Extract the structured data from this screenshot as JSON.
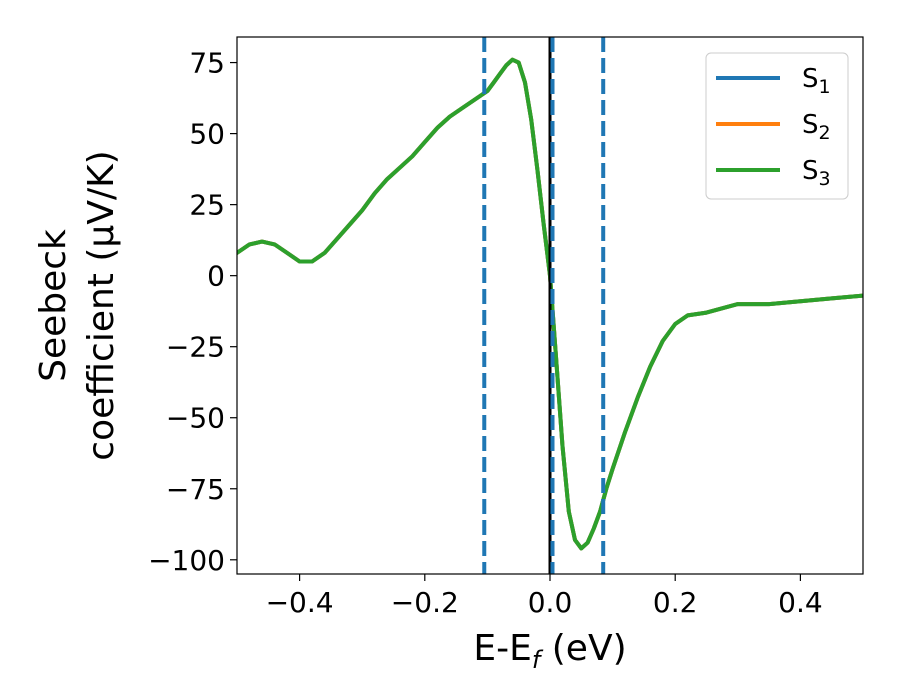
{
  "chart_data": {
    "type": "line",
    "xlabel": "E-E",
    "xlabel_sub": "f",
    "xlabel_unit": " (eV)",
    "ylabel_line1": "Seebeck",
    "ylabel_line2": "coefficient  (μV/K)",
    "xlim": [
      -0.5,
      0.5
    ],
    "ylim": [
      -105,
      84
    ],
    "xticks": [
      -0.4,
      -0.2,
      0.0,
      0.2,
      0.4
    ],
    "xtick_labels": [
      "−0.4",
      "−0.2",
      "0.0",
      "0.2",
      "0.4"
    ],
    "yticks": [
      75,
      50,
      25,
      0,
      -25,
      -50,
      -75,
      -100
    ],
    "ytick_labels": [
      "75",
      "50",
      "25",
      "0",
      "−25",
      "−50",
      "−75",
      "−100"
    ],
    "grid": false,
    "legend_position": "top-right",
    "legend": [
      {
        "base": "S",
        "sub": "1",
        "color": "#1f77b4"
      },
      {
        "base": "S",
        "sub": "2",
        "color": "#ff7f0e"
      },
      {
        "base": "S",
        "sub": "3",
        "color": "#2ca02c"
      }
    ],
    "reference_lines": [
      {
        "x": -0.105,
        "style": "dashed",
        "color": "#1f77b4"
      },
      {
        "x": 0.0,
        "style": "solid",
        "color": "#000000"
      },
      {
        "x": 0.004,
        "style": "dashed",
        "color": "#1f77b4"
      },
      {
        "x": 0.085,
        "style": "dashed",
        "color": "#1f77b4"
      }
    ],
    "series_x": [
      -0.5,
      -0.48,
      -0.46,
      -0.44,
      -0.42,
      -0.4,
      -0.38,
      -0.36,
      -0.34,
      -0.32,
      -0.3,
      -0.28,
      -0.26,
      -0.24,
      -0.22,
      -0.2,
      -0.18,
      -0.16,
      -0.14,
      -0.12,
      -0.1,
      -0.09,
      -0.08,
      -0.07,
      -0.06,
      -0.05,
      -0.04,
      -0.03,
      -0.02,
      -0.01,
      0.0,
      0.01,
      0.02,
      0.03,
      0.04,
      0.05,
      0.06,
      0.07,
      0.08,
      0.09,
      0.1,
      0.12,
      0.14,
      0.16,
      0.18,
      0.2,
      0.22,
      0.25,
      0.3,
      0.35,
      0.4,
      0.45,
      0.5
    ],
    "series": [
      {
        "name": "S1",
        "color": "#1f77b4",
        "values": [
          8,
          11,
          12,
          11,
          8,
          5,
          5,
          8,
          13,
          18,
          23,
          29,
          34,
          38,
          42,
          47,
          52,
          56,
          59,
          62,
          65,
          68,
          71,
          74,
          76,
          75,
          68,
          55,
          37,
          18,
          0,
          -30,
          -60,
          -83,
          -93,
          -96,
          -94,
          -89,
          -83,
          -75,
          -68,
          -55,
          -43,
          -32,
          -23,
          -17,
          -14,
          -13,
          -10,
          -10,
          -9,
          -8,
          -7
        ]
      },
      {
        "name": "S2",
        "color": "#ff7f0e",
        "values": [
          8,
          11,
          12,
          11,
          8,
          5,
          5,
          8,
          13,
          18,
          23,
          29,
          34,
          38,
          42,
          47,
          52,
          56,
          59,
          62,
          65,
          68,
          71,
          74,
          76,
          75,
          68,
          55,
          37,
          18,
          0,
          -30,
          -60,
          -83,
          -93,
          -96,
          -94,
          -89,
          -83,
          -75,
          -68,
          -55,
          -43,
          -32,
          -23,
          -17,
          -14,
          -13,
          -10,
          -10,
          -9,
          -8,
          -7
        ]
      },
      {
        "name": "S3",
        "color": "#2ca02c",
        "values": [
          8,
          11,
          12,
          11,
          8,
          5,
          5,
          8,
          13,
          18,
          23,
          29,
          34,
          38,
          42,
          47,
          52,
          56,
          59,
          62,
          65,
          68,
          71,
          74,
          76,
          75,
          68,
          55,
          37,
          18,
          0,
          -30,
          -60,
          -83,
          -93,
          -96,
          -94,
          -89,
          -83,
          -75,
          -68,
          -55,
          -43,
          -32,
          -23,
          -17,
          -14,
          -13,
          -10,
          -10,
          -9,
          -8,
          -7
        ]
      }
    ]
  }
}
